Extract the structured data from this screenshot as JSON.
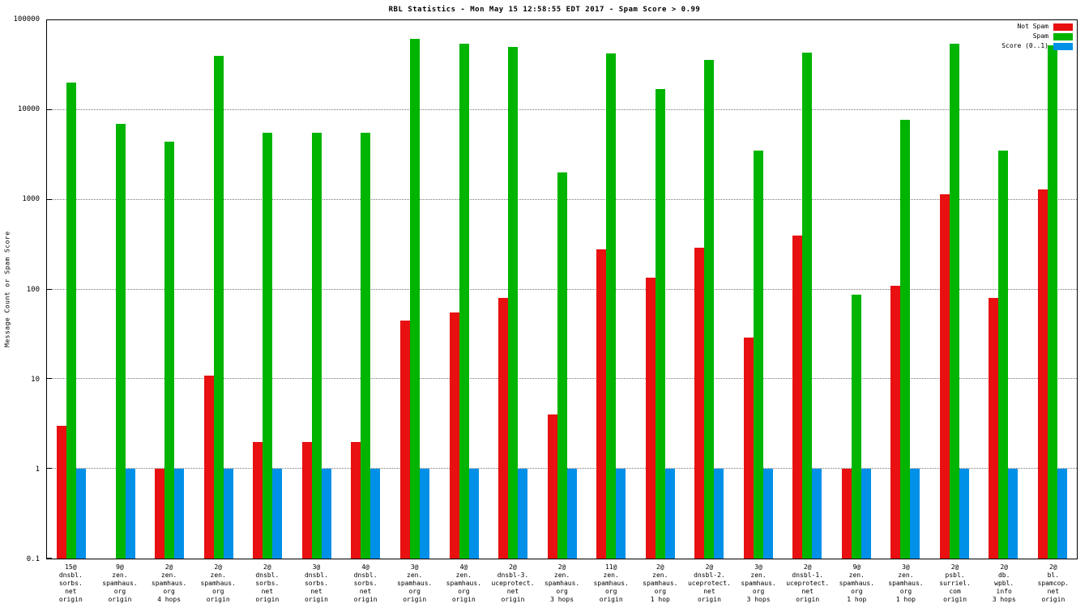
{
  "chart_data": {
    "type": "bar",
    "title": "RBL Statistics - Mon May 15 12:58:55 EDT 2017 - Spam Score > 0.99",
    "ylabel": "Message Count or Spam Score",
    "xlabel": "",
    "yscale": "log",
    "ylim": [
      0.1,
      100000
    ],
    "ytick_labels": [
      "0.1",
      "1",
      "10",
      "100",
      "1000",
      "10000",
      "100000"
    ],
    "grid": true,
    "legend_position": "top-right",
    "categories": [
      [
        "15@",
        "dnsbl.",
        "sorbs.",
        "net",
        "origin"
      ],
      [
        "9@",
        "zen.",
        "spamhaus.",
        "org",
        "origin"
      ],
      [
        "2@",
        "zen.",
        "spamhaus.",
        "org",
        "4 hops"
      ],
      [
        "2@",
        "zen.",
        "spamhaus.",
        "org",
        "origin"
      ],
      [
        "2@",
        "dnsbl.",
        "sorbs.",
        "net",
        "origin"
      ],
      [
        "3@",
        "dnsbl.",
        "sorbs.",
        "net",
        "origin"
      ],
      [
        "4@",
        "dnsbl.",
        "sorbs.",
        "net",
        "origin"
      ],
      [
        "3@",
        "zen.",
        "spamhaus.",
        "org",
        "origin"
      ],
      [
        "4@",
        "zen.",
        "spamhaus.",
        "org",
        "origin"
      ],
      [
        "2@",
        "dnsbl-3.",
        "uceprotect.",
        "net",
        "origin"
      ],
      [
        "2@",
        "zen.",
        "spamhaus.",
        "org",
        "3 hops"
      ],
      [
        "11@",
        "zen.",
        "spamhaus.",
        "org",
        "origin"
      ],
      [
        "2@",
        "zen.",
        "spamhaus.",
        "org",
        "1 hop"
      ],
      [
        "2@",
        "dnsbl-2.",
        "uceprotect.",
        "net",
        "origin"
      ],
      [
        "3@",
        "zen.",
        "spamhaus.",
        "org",
        "3 hops"
      ],
      [
        "2@",
        "dnsbl-1.",
        "uceprotect.",
        "net",
        "origin"
      ],
      [
        "9@",
        "zen.",
        "spamhaus.",
        "org",
        "1 hop"
      ],
      [
        "3@",
        "zen.",
        "spamhaus.",
        "org",
        "1 hop"
      ],
      [
        "2@",
        "psbl.",
        "surriel.",
        "com",
        "origin"
      ],
      [
        "2@",
        "db.",
        "wpbl.",
        "info",
        "3 hops"
      ],
      [
        "2@",
        "bl.",
        "spamcop.",
        "net",
        "origin"
      ]
    ],
    "series": [
      {
        "name": "Not Spam",
        "color": "#e81010",
        "values": [
          3,
          null,
          1,
          11,
          2,
          2,
          2,
          45,
          55,
          80,
          4,
          280,
          135,
          290,
          29,
          400,
          1,
          110,
          1150,
          80,
          1300
        ]
      },
      {
        "name": "Spam",
        "color": "#00b400",
        "values": [
          20000,
          7000,
          4400,
          40000,
          5600,
          5600,
          5600,
          62000,
          55000,
          50000,
          2000,
          43000,
          17000,
          36000,
          3500,
          44000,
          88,
          7800,
          55000,
          3500,
          52000
        ]
      },
      {
        "name": "Score (0..1)",
        "color": "#0090e8",
        "values": [
          1,
          1,
          1,
          1,
          1,
          1,
          1,
          1,
          1,
          1,
          1,
          1,
          1,
          1,
          1,
          1,
          1,
          1,
          1,
          1,
          1
        ]
      }
    ]
  }
}
